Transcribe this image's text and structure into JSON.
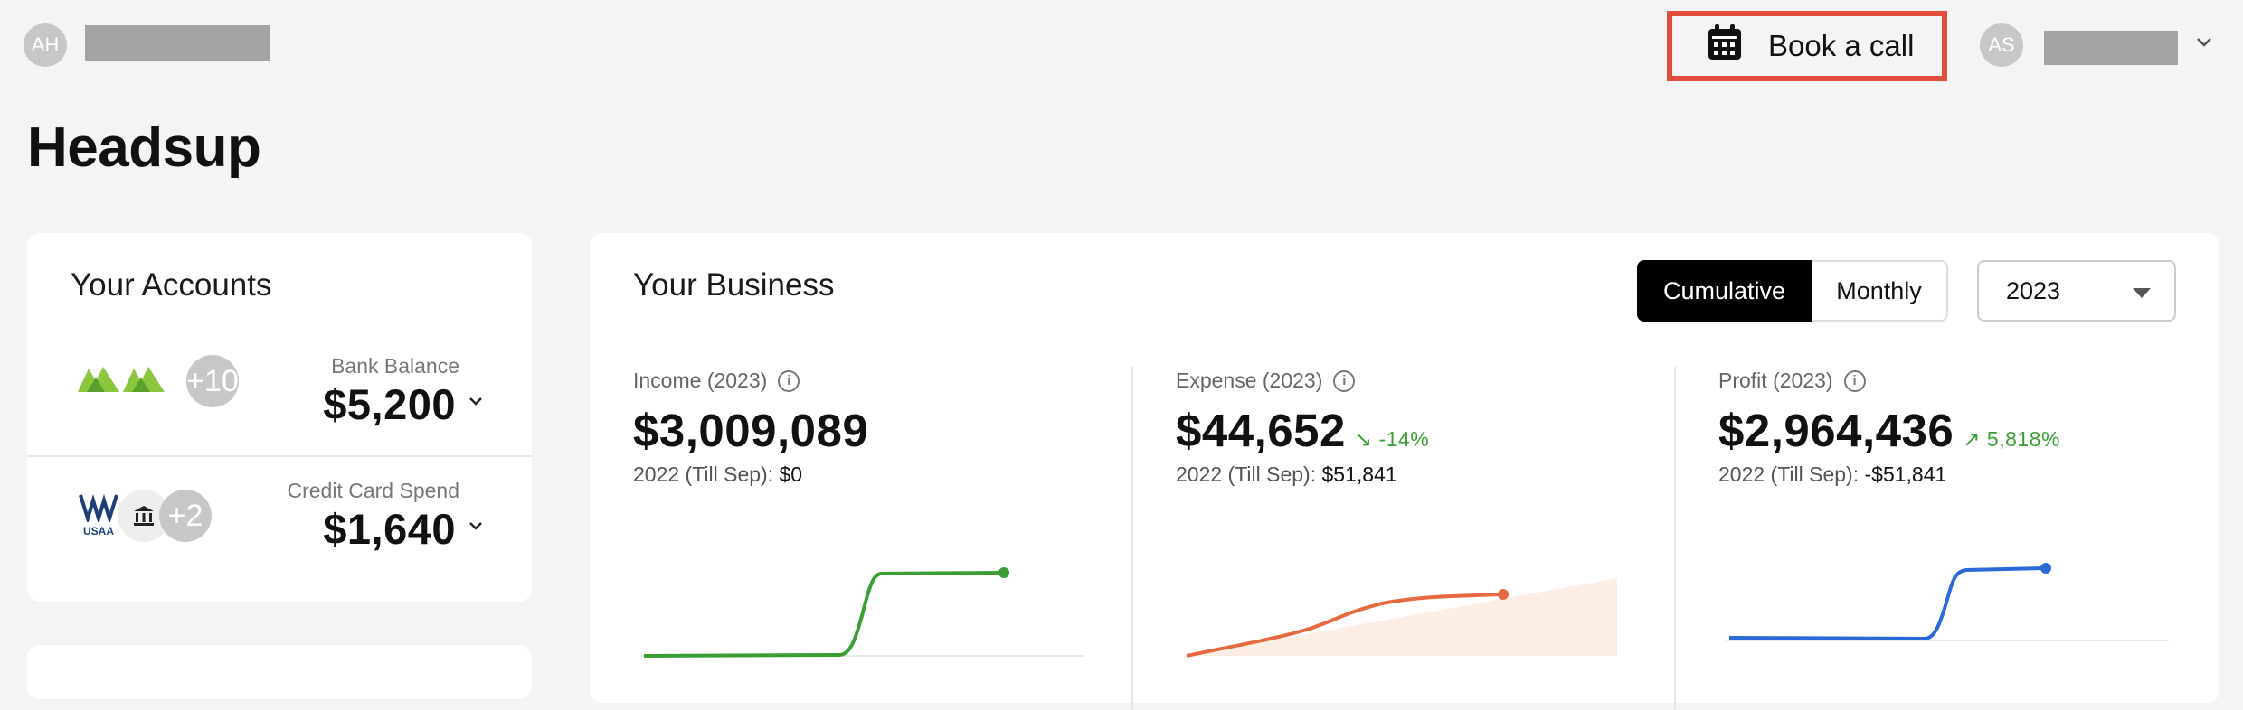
{
  "header": {
    "left_avatar_initials": "AH",
    "book_call_label": "Book a call",
    "right_avatar_initials": "AS"
  },
  "page": {
    "title": "Headsup"
  },
  "accounts": {
    "title": "Your Accounts",
    "bank": {
      "label": "Bank Balance",
      "value": "$5,200",
      "extra_count": "+10"
    },
    "credit": {
      "label": "Credit Card Spend",
      "value": "$1,640",
      "extra_count": "+2",
      "bank_logo_text": "USAA"
    }
  },
  "business": {
    "title": "Your Business",
    "view_toggle": {
      "cumulative": "Cumulative",
      "monthly": "Monthly",
      "selected": "Cumulative"
    },
    "year": "2023",
    "metrics": [
      {
        "label": "Income (2023)",
        "value": "$3,009,089",
        "change": "",
        "prior_label": "2022 (Till Sep):",
        "prior_value": "$0",
        "color": "#3a9e35"
      },
      {
        "label": "Expense (2023)",
        "value": "$44,652",
        "change": "-14%",
        "change_color": "#3a9e35",
        "prior_label": "2022 (Till Sep):",
        "prior_value": "$51,841",
        "color": "#e8693f"
      },
      {
        "label": "Profit (2023)",
        "value": "$2,964,436",
        "change": "5,818%",
        "change_color": "#3a9e35",
        "prior_label": "2022 (Till Sep):",
        "prior_value": "-$51,841",
        "color": "#2a6ad8"
      }
    ]
  }
}
